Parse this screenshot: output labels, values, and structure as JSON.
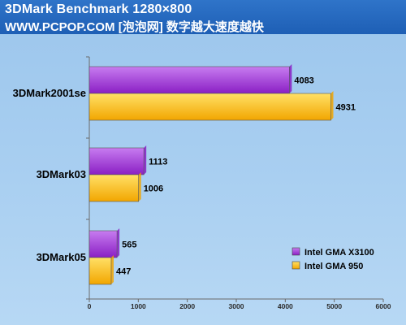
{
  "header": {
    "title": "3DMark Benchmark 1280×800",
    "subtitle": "WWW.PCPOP.COM [泡泡网] 数字越大速度越快"
  },
  "colors": {
    "series_1_top": "#c77cf0",
    "series_1_bottom": "#8a1fc4",
    "series_2_top": "#ffe066",
    "series_2_bottom": "#f2a600"
  },
  "chart_data": {
    "type": "bar",
    "orientation": "horizontal",
    "categories": [
      "3DMark2001se",
      "3DMark03",
      "3DMark05"
    ],
    "series": [
      {
        "name": "Intel GMA X3100",
        "values": [
          4083,
          1113,
          565
        ]
      },
      {
        "name": "Intel GMA 950",
        "values": [
          4931,
          1006,
          447
        ]
      }
    ],
    "xlim": [
      0,
      6000
    ],
    "xticks": [
      0,
      1000,
      2000,
      3000,
      4000,
      5000,
      6000
    ],
    "grid": false,
    "legend_position": "bottom-right"
  }
}
